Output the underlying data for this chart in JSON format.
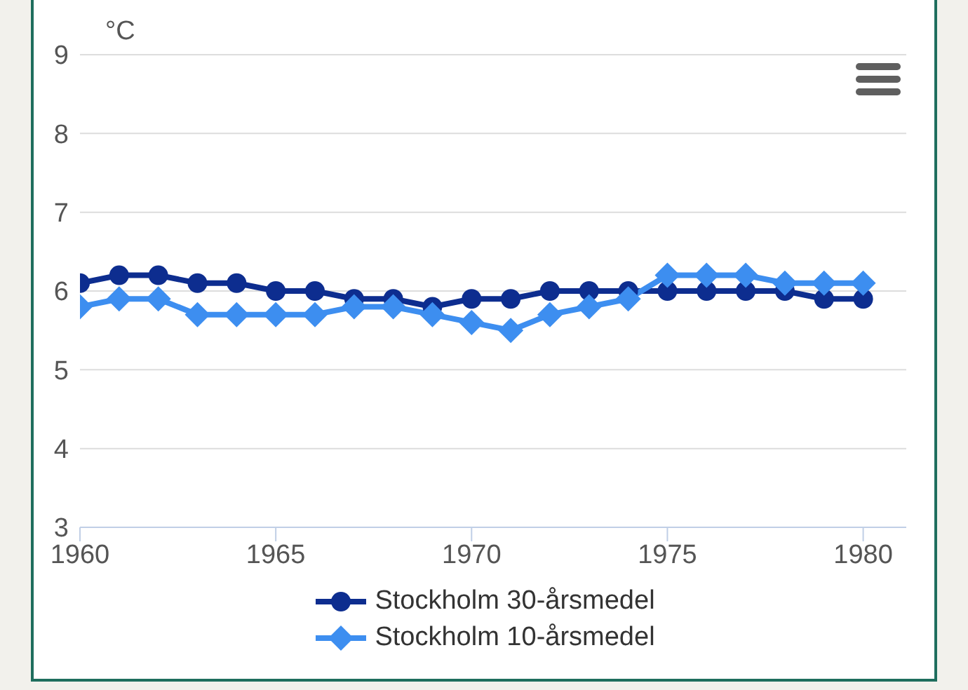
{
  "chart_data": {
    "type": "line",
    "ylabel": "°C",
    "x": [
      1960,
      1961,
      1962,
      1963,
      1964,
      1965,
      1966,
      1967,
      1968,
      1969,
      1970,
      1971,
      1972,
      1973,
      1974,
      1975,
      1976,
      1977,
      1978,
      1979,
      1980
    ],
    "series": [
      {
        "name": "Stockholm 30-årsmedel",
        "color": "#0d2d8f",
        "marker": "circle",
        "values": [
          6.1,
          6.2,
          6.2,
          6.1,
          6.1,
          6.0,
          6.0,
          5.9,
          5.9,
          5.8,
          5.9,
          5.9,
          6.0,
          6.0,
          6.0,
          6.0,
          6.0,
          6.0,
          6.0,
          5.9,
          5.9
        ]
      },
      {
        "name": "Stockholm 10-årsmedel",
        "color": "#3d8ef0",
        "marker": "diamond",
        "values": [
          5.8,
          5.9,
          5.9,
          5.7,
          5.7,
          5.7,
          5.7,
          5.8,
          5.8,
          5.7,
          5.6,
          5.5,
          5.7,
          5.8,
          5.9,
          6.2,
          6.2,
          6.2,
          6.1,
          6.1,
          6.1
        ]
      }
    ],
    "xlim": [
      1960,
      1981.1
    ],
    "xticks": [
      1960,
      1965,
      1970,
      1975,
      1980
    ],
    "ylim": [
      3,
      9
    ],
    "yticks": [
      3,
      4,
      5,
      6,
      7,
      8,
      9
    ],
    "grid": "y",
    "legend": "bottom",
    "line_style": "solid"
  }
}
